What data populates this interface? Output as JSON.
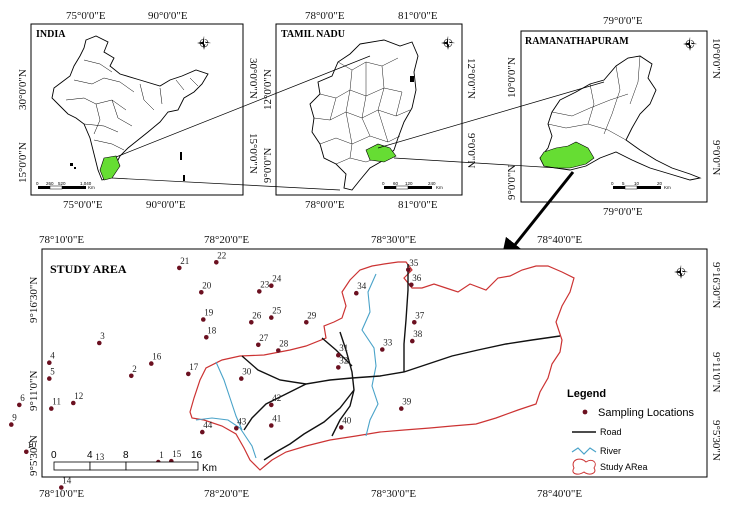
{
  "panels": {
    "india": {
      "title": "INDIA",
      "top_ticks": [
        "75°0'0\"E",
        "90°0'0\"E"
      ],
      "bottom_ticks": [
        "75°0'0\"E",
        "90°0'0\"E"
      ],
      "left_ticks": [
        "30°0'0\"N",
        "15°0'0\"N"
      ],
      "right_ticks": [
        "30°0'0\"N",
        "15°0'0\"N"
      ],
      "scale_labels": [
        "0",
        "260",
        "520",
        "1,040"
      ],
      "scale_unit": "Km"
    },
    "tamil_nadu": {
      "title": "TAMIL NADU",
      "top_ticks": [
        "78°0'0\"E",
        "81°0'0\"E"
      ],
      "bottom_ticks": [
        "78°0'0\"E",
        "81°0'0\"E"
      ],
      "left_ticks": [
        "12°0'0\"N",
        "9°0'0\"N"
      ],
      "right_ticks": [
        "12°0'0\"N",
        "9°0'0\"N"
      ],
      "scale_labels": [
        "0",
        "60",
        "120",
        "240"
      ],
      "scale_unit": "Km"
    },
    "ramanathapuram": {
      "title": "RAMANATHAPURAM",
      "top_ticks": [
        "79°0'0\"E"
      ],
      "bottom_ticks": [
        "79°0'0\"E"
      ],
      "left_ticks": [
        "10°0'0\"N",
        "9°0'0\"N"
      ],
      "right_ticks": [
        "10°0'0\"N",
        "9°0'0\"N"
      ],
      "scale_labels": [
        "0",
        "5",
        "10",
        "20"
      ],
      "scale_unit": "Km"
    }
  },
  "study_area": {
    "title": "STUDY AREA",
    "top_ticks": [
      "78°10'0\"E",
      "78°20'0\"E",
      "78°30'0\"E",
      "78°40'0\"E"
    ],
    "bottom_ticks": [
      "78°10'0\"E",
      "78°20'0\"E",
      "78°30'0\"E",
      "78°40'0\"E"
    ],
    "left_ticks": [
      "9°16'30\"N",
      "9°11'0\"N",
      "9°5'30\"N"
    ],
    "right_ticks": [
      "9°16'30\"N",
      "9°11'0\"N",
      "9°5'30\"N"
    ],
    "scale_labels": [
      "0",
      "4",
      "8",
      "16"
    ],
    "scale_unit": "Km",
    "sampling_points": [
      {
        "id": "1",
        "lon": 78.258,
        "lat": 9.099
      },
      {
        "id": "2",
        "lon": 78.231,
        "lat": 9.191
      },
      {
        "id": "3",
        "lon": 78.199,
        "lat": 9.226
      },
      {
        "id": "4",
        "lon": 78.149,
        "lat": 9.205
      },
      {
        "id": "5",
        "lon": 78.149,
        "lat": 9.188
      },
      {
        "id": "6",
        "lon": 78.119,
        "lat": 9.16
      },
      {
        "id": "7",
        "lon": 78.044,
        "lat": 9.181
      },
      {
        "id": "8",
        "lon": 78.039,
        "lat": 9.153
      },
      {
        "id": "9",
        "lon": 78.111,
        "lat": 9.139
      },
      {
        "id": "10",
        "lon": 78.126,
        "lat": 9.11
      },
      {
        "id": "11",
        "lon": 78.151,
        "lat": 9.156
      },
      {
        "id": "12",
        "lon": 78.173,
        "lat": 9.162
      },
      {
        "id": "13",
        "lon": 78.194,
        "lat": 9.097
      },
      {
        "id": "14",
        "lon": 78.161,
        "lat": 9.072
      },
      {
        "id": "15",
        "lon": 78.271,
        "lat": 9.1
      },
      {
        "id": "16",
        "lon": 78.251,
        "lat": 9.204
      },
      {
        "id": "17",
        "lon": 78.288,
        "lat": 9.193
      },
      {
        "id": "18",
        "lon": 78.306,
        "lat": 9.232
      },
      {
        "id": "19",
        "lon": 78.303,
        "lat": 9.251
      },
      {
        "id": "20",
        "lon": 78.301,
        "lat": 9.28
      },
      {
        "id": "21",
        "lon": 78.279,
        "lat": 9.306
      },
      {
        "id": "22",
        "lon": 78.316,
        "lat": 9.312
      },
      {
        "id": "23",
        "lon": 78.359,
        "lat": 9.281
      },
      {
        "id": "24",
        "lon": 78.371,
        "lat": 9.287
      },
      {
        "id": "25",
        "lon": 78.371,
        "lat": 9.253
      },
      {
        "id": "26",
        "lon": 78.351,
        "lat": 9.248
      },
      {
        "id": "27",
        "lon": 78.358,
        "lat": 9.224
      },
      {
        "id": "28",
        "lon": 78.378,
        "lat": 9.218
      },
      {
        "id": "29",
        "lon": 78.406,
        "lat": 9.248
      },
      {
        "id": "30",
        "lon": 78.341,
        "lat": 9.188
      },
      {
        "id": "31",
        "lon": 78.438,
        "lat": 9.213
      },
      {
        "id": "32",
        "lon": 78.438,
        "lat": 9.2
      },
      {
        "id": "33",
        "lon": 78.482,
        "lat": 9.219
      },
      {
        "id": "34",
        "lon": 78.456,
        "lat": 9.279
      },
      {
        "id": "35",
        "lon": 78.508,
        "lat": 9.304
      },
      {
        "id": "36",
        "lon": 78.511,
        "lat": 9.288
      },
      {
        "id": "37",
        "lon": 78.514,
        "lat": 9.248
      },
      {
        "id": "38",
        "lon": 78.512,
        "lat": 9.228
      },
      {
        "id": "39",
        "lon": 78.501,
        "lat": 9.156
      },
      {
        "id": "40",
        "lon": 78.441,
        "lat": 9.136
      },
      {
        "id": "41",
        "lon": 78.371,
        "lat": 9.138
      },
      {
        "id": "42",
        "lon": 78.371,
        "lat": 9.16
      },
      {
        "id": "43",
        "lon": 78.336,
        "lat": 9.135
      },
      {
        "id": "44",
        "lon": 78.302,
        "lat": 9.131
      }
    ]
  },
  "legend": {
    "title": "Legend",
    "sampling": "Sampling Locations",
    "road": "Road",
    "river": "River",
    "study_area": "Study ARea"
  },
  "colors": {
    "highlight": "#66dd33",
    "boundary_red": "#cc3333",
    "river": "#4aa3c9",
    "road": "#111111",
    "point": "#6b1020"
  },
  "icons": {
    "compass": "north-arrow-icon"
  }
}
